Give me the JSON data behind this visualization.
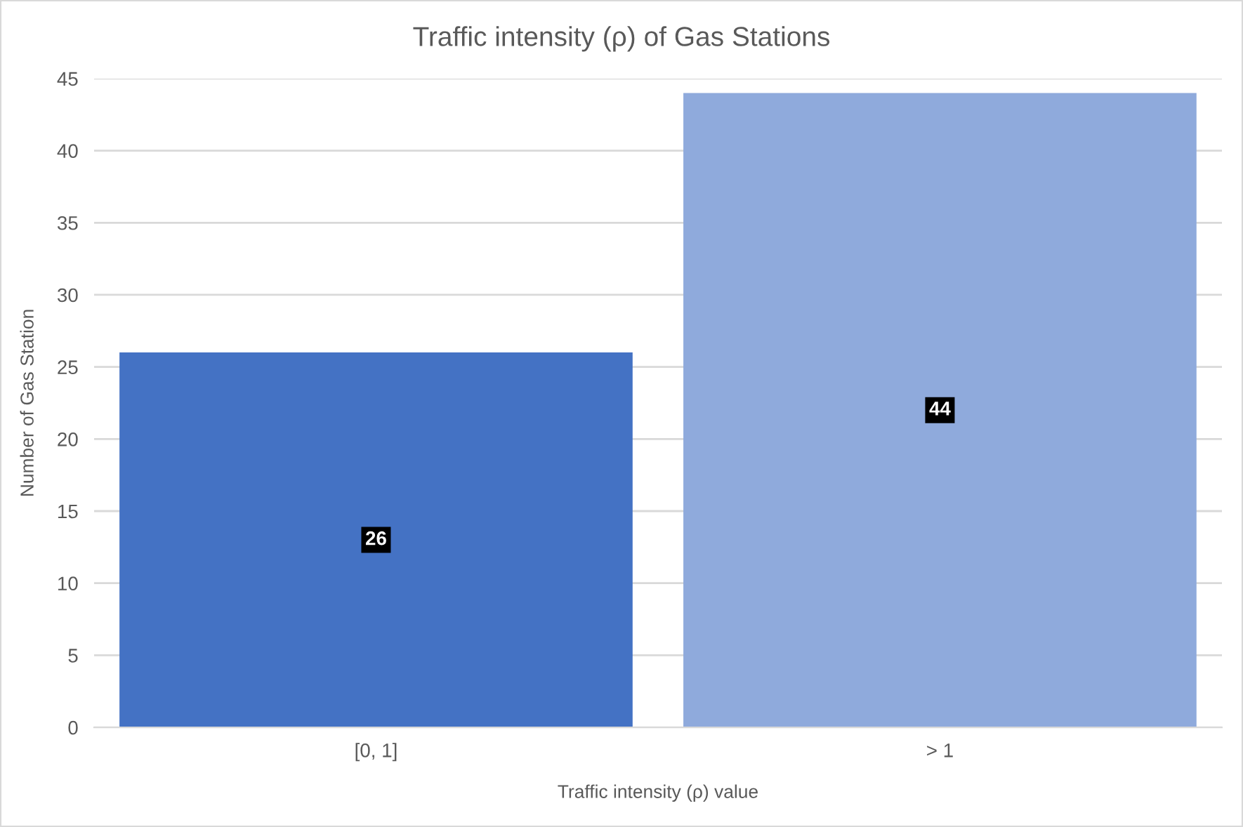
{
  "chart_data": {
    "type": "bar",
    "title": "Traffic intensity (ρ) of Gas Stations",
    "xlabel": "Traffic intensity (ρ) value",
    "ylabel": "Number of Gas Station",
    "categories": [
      "[0, 1]",
      "> 1"
    ],
    "values": [
      26,
      44
    ],
    "colors": [
      "#4472c4",
      "#8faadc"
    ],
    "ylim": [
      0,
      45
    ],
    "yticks": [
      0,
      5,
      10,
      15,
      20,
      25,
      30,
      35,
      40,
      45
    ],
    "grid": "y",
    "data_labels": true
  }
}
